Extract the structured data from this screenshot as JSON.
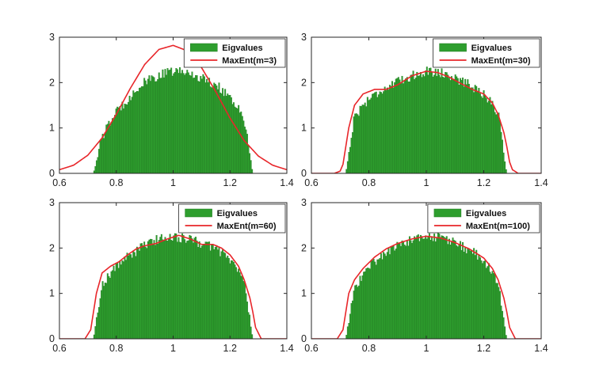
{
  "colors": {
    "histogram": "#2e9e2e",
    "histogram_edge": "#1f7a1f",
    "curve": "#e8262a",
    "axis": "#262626",
    "background": "#ffffff"
  },
  "chart_data": [
    {
      "type": "bar",
      "panel": "top-left",
      "xlim": [
        0.6,
        1.4
      ],
      "ylim": [
        0,
        3
      ],
      "xticks": [
        "0.6",
        "0.8",
        "1",
        "1.2",
        "1.4"
      ],
      "yticks": [
        "0",
        "1",
        "2",
        "3"
      ],
      "legend_position": "top-right",
      "histogram": {
        "name": "Eigvalues",
        "x": [
          0.72,
          0.75,
          0.8,
          0.85,
          0.9,
          0.95,
          1.0,
          1.05,
          1.1,
          1.15,
          1.2,
          1.25,
          1.28
        ],
        "y": [
          0.0,
          0.8,
          1.35,
          1.7,
          2.0,
          2.15,
          2.25,
          2.22,
          2.1,
          1.95,
          1.7,
          1.2,
          0.0
        ]
      },
      "curve": {
        "name": "MaxEnt(m=3)",
        "x": [
          0.6,
          0.65,
          0.7,
          0.75,
          0.8,
          0.85,
          0.9,
          0.95,
          1.0,
          1.05,
          1.1,
          1.15,
          1.2,
          1.25,
          1.3,
          1.35,
          1.4
        ],
        "y": [
          0.08,
          0.18,
          0.4,
          0.78,
          1.3,
          1.88,
          2.4,
          2.73,
          2.82,
          2.7,
          2.33,
          1.8,
          1.22,
          0.72,
          0.38,
          0.18,
          0.08
        ]
      }
    },
    {
      "type": "bar",
      "panel": "top-right",
      "xlim": [
        0.6,
        1.4
      ],
      "ylim": [
        0,
        3
      ],
      "xticks": [
        "0.6",
        "0.8",
        "1",
        "1.2",
        "1.4"
      ],
      "yticks": [
        "0",
        "1",
        "2",
        "3"
      ],
      "legend_position": "top-right",
      "histogram": {
        "name": "Eigvalues",
        "x": [
          0.72,
          0.75,
          0.8,
          0.85,
          0.9,
          0.95,
          1.0,
          1.05,
          1.1,
          1.15,
          1.2,
          1.25,
          1.28
        ],
        "y": [
          0.0,
          1.25,
          1.65,
          1.85,
          2.0,
          2.15,
          2.25,
          2.22,
          2.1,
          1.95,
          1.75,
          1.35,
          0.0
        ]
      },
      "curve": {
        "name": "MaxEnt(m=30)",
        "x": [
          0.6,
          0.68,
          0.7,
          0.71,
          0.72,
          0.73,
          0.75,
          0.78,
          0.82,
          0.86,
          0.9,
          0.95,
          1.0,
          1.04,
          1.08,
          1.12,
          1.16,
          1.2,
          1.23,
          1.25,
          1.27,
          1.28,
          1.29,
          1.3,
          1.32,
          1.4
        ],
        "y": [
          0.0,
          0.0,
          0.05,
          0.2,
          0.6,
          1.0,
          1.5,
          1.75,
          1.85,
          1.85,
          1.95,
          2.15,
          2.25,
          2.22,
          2.12,
          1.98,
          1.85,
          1.75,
          1.55,
          1.3,
          0.9,
          0.6,
          0.25,
          0.08,
          0.0,
          0.0
        ]
      }
    },
    {
      "type": "bar",
      "panel": "bottom-left",
      "xlim": [
        0.6,
        1.4
      ],
      "ylim": [
        0,
        3
      ],
      "xticks": [
        "0.6",
        "0.8",
        "1",
        "1.2",
        "1.4"
      ],
      "yticks": [
        "0",
        "1",
        "2",
        "3"
      ],
      "legend_position": "top-right",
      "histogram": {
        "name": "Eigvalues",
        "x": [
          0.72,
          0.75,
          0.8,
          0.85,
          0.9,
          0.95,
          1.0,
          1.05,
          1.1,
          1.15,
          1.2,
          1.25,
          1.28
        ],
        "y": [
          0.0,
          1.2,
          1.6,
          1.85,
          2.05,
          2.2,
          2.25,
          2.2,
          2.1,
          2.0,
          1.75,
          1.3,
          0.0
        ]
      },
      "curve": {
        "name": "MaxEnt(m=60)",
        "x": [
          0.6,
          0.69,
          0.71,
          0.72,
          0.73,
          0.75,
          0.78,
          0.81,
          0.84,
          0.87,
          0.9,
          0.94,
          0.98,
          1.02,
          1.06,
          1.1,
          1.14,
          1.17,
          1.2,
          1.23,
          1.25,
          1.27,
          1.28,
          1.29,
          1.31,
          1.4
        ],
        "y": [
          0.0,
          0.0,
          0.2,
          0.6,
          1.0,
          1.45,
          1.6,
          1.7,
          1.85,
          1.98,
          2.05,
          2.1,
          2.2,
          2.28,
          2.2,
          2.08,
          2.08,
          2.0,
          1.85,
          1.6,
          1.3,
          0.9,
          0.6,
          0.25,
          0.0,
          0.0
        ]
      }
    },
    {
      "type": "bar",
      "panel": "bottom-right",
      "xlim": [
        0.6,
        1.4
      ],
      "ylim": [
        0,
        3
      ],
      "xticks": [
        "0.6",
        "0.8",
        "1",
        "1.2",
        "1.4"
      ],
      "yticks": [
        "0",
        "1",
        "2",
        "3"
      ],
      "legend_position": "top-right",
      "histogram": {
        "name": "Eigvalues",
        "x": [
          0.72,
          0.75,
          0.8,
          0.85,
          0.9,
          0.95,
          1.0,
          1.05,
          1.1,
          1.15,
          1.2,
          1.25,
          1.28
        ],
        "y": [
          0.0,
          1.1,
          1.6,
          1.85,
          2.05,
          2.18,
          2.25,
          2.22,
          2.12,
          1.95,
          1.75,
          1.25,
          0.0
        ]
      },
      "curve": {
        "name": "MaxEnt(m=100)",
        "x": [
          0.6,
          0.69,
          0.71,
          0.72,
          0.73,
          0.75,
          0.78,
          0.82,
          0.86,
          0.9,
          0.95,
          1.0,
          1.05,
          1.1,
          1.15,
          1.2,
          1.23,
          1.25,
          1.27,
          1.28,
          1.29,
          1.31,
          1.4
        ],
        "y": [
          0.0,
          0.0,
          0.2,
          0.6,
          1.0,
          1.3,
          1.55,
          1.8,
          1.98,
          2.1,
          2.2,
          2.26,
          2.22,
          2.12,
          1.98,
          1.78,
          1.55,
          1.3,
          0.9,
          0.6,
          0.25,
          0.0,
          0.0
        ]
      }
    }
  ]
}
